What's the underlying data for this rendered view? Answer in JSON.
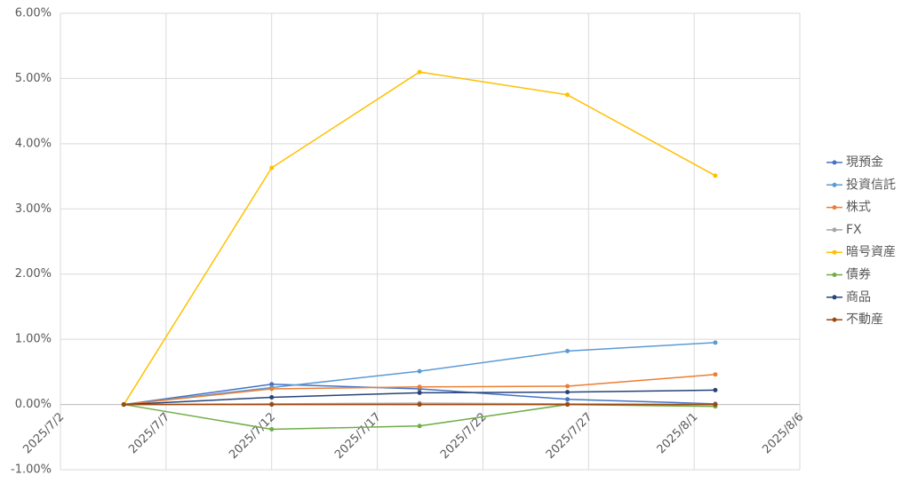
{
  "chart_data": {
    "type": "line",
    "x": [
      "2025/7/5",
      "2025/7/12",
      "2025/7/19",
      "2025/7/26",
      "2025/8/2"
    ],
    "xlim": [
      "2025/7/2",
      "2025/8/6"
    ],
    "xticks": [
      "2025/7/2",
      "2025/7/7",
      "2025/7/12",
      "2025/7/17",
      "2025/7/22",
      "2025/7/27",
      "2025/8/1",
      "2025/8/6"
    ],
    "ylim": [
      -1,
      6
    ],
    "yticks": [
      {
        "value": -1,
        "label": "-1.00%"
      },
      {
        "value": 0,
        "label": "0.00%"
      },
      {
        "value": 1,
        "label": "1.00%"
      },
      {
        "value": 2,
        "label": "2.00%"
      },
      {
        "value": 3,
        "label": "3.00%"
      },
      {
        "value": 4,
        "label": "4.00%"
      },
      {
        "value": 5,
        "label": "5.00%"
      },
      {
        "value": 6,
        "label": "6.00%"
      }
    ],
    "grid": true,
    "legend": "right",
    "series": [
      {
        "name": "現預金",
        "color": "#4472c4",
        "values": [
          0,
          0.31,
          0.24,
          0.08,
          0.01
        ]
      },
      {
        "name": "投資信託",
        "color": "#5b9bd5",
        "values": [
          0,
          0.26,
          0.51,
          0.82,
          0.95
        ]
      },
      {
        "name": "株式",
        "color": "#ed7d31",
        "values": [
          0,
          0.24,
          0.27,
          0.28,
          0.46
        ]
      },
      {
        "name": "FX",
        "color": "#a5a5a5",
        "values": [
          0,
          0.01,
          0.02,
          0.01,
          0.0
        ]
      },
      {
        "name": "暗号資産",
        "color": "#ffc000",
        "values": [
          0,
          3.63,
          5.1,
          4.75,
          3.51
        ]
      },
      {
        "name": "債券",
        "color": "#70ad47",
        "values": [
          0,
          -0.38,
          -0.33,
          0.0,
          -0.03
        ]
      },
      {
        "name": "商品",
        "color": "#264478",
        "values": [
          0,
          0.11,
          0.18,
          0.19,
          0.22
        ]
      },
      {
        "name": "不動産",
        "color": "#9e480e",
        "values": [
          0,
          0.0,
          0.0,
          0.0,
          0.0
        ]
      }
    ]
  }
}
